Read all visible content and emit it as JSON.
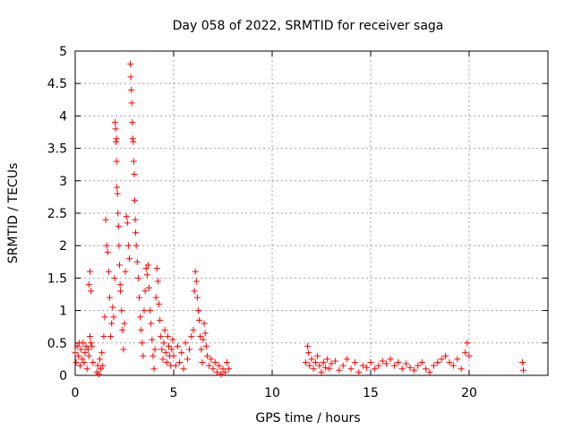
{
  "chart_data": {
    "type": "scatter",
    "title": "Day 058 of 2022, SRMTID for receiver saga",
    "xlabel": "GPS time / hours",
    "ylabel": "SRMTID / TECUs",
    "xlim": [
      0,
      24
    ],
    "ylim": [
      0,
      5
    ],
    "xticks": [
      0,
      5,
      10,
      15,
      20
    ],
    "xtick_labels": [
      "0",
      "5",
      "10",
      "15",
      "20"
    ],
    "yticks": [
      0,
      0.5,
      1,
      1.5,
      2,
      2.5,
      3,
      3.5,
      4,
      4.5,
      5
    ],
    "ytick_labels": [
      "0",
      "0.5",
      "1",
      "1.5",
      "2",
      "2.5",
      "3",
      "3.5",
      "4",
      "4.5",
      "5"
    ],
    "grid": true,
    "marker": "+",
    "color": "#ff0000",
    "series": [
      {
        "name": "SRMTID",
        "points": [
          [
            0.0,
            0.35
          ],
          [
            0.05,
            0.2
          ],
          [
            0.1,
            0.45
          ],
          [
            0.15,
            0.3
          ],
          [
            0.2,
            0.5
          ],
          [
            0.25,
            0.15
          ],
          [
            0.3,
            0.4
          ],
          [
            0.35,
            0.25
          ],
          [
            0.4,
            0.5
          ],
          [
            0.45,
            0.2
          ],
          [
            0.5,
            0.35
          ],
          [
            0.55,
            0.45
          ],
          [
            0.6,
            0.1
          ],
          [
            0.65,
            0.4
          ],
          [
            0.7,
            0.3
          ],
          [
            0.75,
            0.6
          ],
          [
            0.8,
            0.5
          ],
          [
            0.75,
            1.6
          ],
          [
            0.7,
            1.4
          ],
          [
            0.8,
            1.3
          ],
          [
            0.85,
            0.45
          ],
          [
            0.9,
            0.2
          ],
          [
            1.1,
            0.05
          ],
          [
            1.15,
            0.15
          ],
          [
            1.2,
            0.02
          ],
          [
            1.25,
            0.25
          ],
          [
            1.3,
            0.1
          ],
          [
            1.35,
            0.35
          ],
          [
            1.4,
            0.15
          ],
          [
            1.45,
            0.6
          ],
          [
            1.5,
            0.9
          ],
          [
            1.55,
            2.4
          ],
          [
            1.6,
            2.0
          ],
          [
            1.65,
            1.9
          ],
          [
            1.7,
            1.6
          ],
          [
            1.75,
            1.2
          ],
          [
            1.8,
            0.6
          ],
          [
            1.85,
            0.8
          ],
          [
            1.9,
            1.05
          ],
          [
            1.95,
            0.9
          ],
          [
            2.0,
            1.5
          ],
          [
            2.02,
            3.9
          ],
          [
            2.05,
            3.8
          ],
          [
            2.07,
            3.6
          ],
          [
            2.1,
            3.65
          ],
          [
            2.1,
            3.3
          ],
          [
            2.12,
            2.9
          ],
          [
            2.15,
            2.8
          ],
          [
            2.17,
            2.5
          ],
          [
            2.2,
            2.3
          ],
          [
            2.22,
            2.0
          ],
          [
            2.25,
            1.7
          ],
          [
            2.28,
            1.4
          ],
          [
            2.3,
            1.3
          ],
          [
            2.35,
            1.0
          ],
          [
            2.4,
            0.7
          ],
          [
            2.45,
            0.4
          ],
          [
            2.5,
            0.8
          ],
          [
            2.55,
            1.6
          ],
          [
            2.6,
            2.45
          ],
          [
            2.65,
            2.35
          ],
          [
            2.7,
            2.0
          ],
          [
            2.75,
            1.8
          ],
          [
            2.8,
            4.8
          ],
          [
            2.82,
            4.6
          ],
          [
            2.85,
            4.4
          ],
          [
            2.87,
            4.2
          ],
          [
            2.9,
            3.9
          ],
          [
            2.92,
            3.65
          ],
          [
            2.95,
            3.6
          ],
          [
            2.97,
            3.3
          ],
          [
            3.0,
            3.1
          ],
          [
            3.02,
            2.7
          ],
          [
            3.05,
            2.4
          ],
          [
            3.07,
            2.2
          ],
          [
            3.1,
            2.0
          ],
          [
            3.15,
            1.75
          ],
          [
            3.2,
            1.5
          ],
          [
            3.25,
            1.2
          ],
          [
            3.3,
            0.9
          ],
          [
            3.35,
            0.7
          ],
          [
            3.4,
            0.5
          ],
          [
            3.45,
            0.3
          ],
          [
            3.5,
            1.0
          ],
          [
            3.55,
            1.3
          ],
          [
            3.6,
            1.65
          ],
          [
            3.65,
            1.55
          ],
          [
            3.7,
            1.7
          ],
          [
            3.75,
            1.35
          ],
          [
            3.8,
            1.0
          ],
          [
            3.85,
            0.8
          ],
          [
            3.9,
            0.55
          ],
          [
            3.95,
            0.3
          ],
          [
            4.0,
            0.1
          ],
          [
            4.05,
            0.4
          ],
          [
            4.1,
            1.2
          ],
          [
            4.15,
            1.65
          ],
          [
            4.2,
            1.45
          ],
          [
            4.25,
            1.1
          ],
          [
            4.3,
            0.85
          ],
          [
            4.35,
            0.6
          ],
          [
            4.4,
            0.4
          ],
          [
            4.45,
            0.25
          ],
          [
            4.5,
            0.5
          ],
          [
            4.55,
            0.7
          ],
          [
            4.6,
            0.35
          ],
          [
            4.65,
            0.2
          ],
          [
            4.7,
            0.6
          ],
          [
            4.75,
            0.45
          ],
          [
            4.8,
            0.3
          ],
          [
            4.85,
            0.15
          ],
          [
            4.9,
            0.4
          ],
          [
            4.95,
            0.55
          ],
          [
            5.0,
            0.3
          ],
          [
            5.1,
            0.15
          ],
          [
            5.2,
            0.45
          ],
          [
            5.3,
            0.2
          ],
          [
            5.4,
            0.35
          ],
          [
            5.5,
            0.1
          ],
          [
            5.6,
            0.5
          ],
          [
            5.7,
            0.25
          ],
          [
            5.8,
            0.4
          ],
          [
            5.9,
            0.6
          ],
          [
            6.0,
            0.7
          ],
          [
            6.05,
            1.3
          ],
          [
            6.1,
            1.6
          ],
          [
            6.15,
            1.45
          ],
          [
            6.2,
            1.2
          ],
          [
            6.25,
            1.0
          ],
          [
            6.3,
            0.85
          ],
          [
            6.35,
            0.6
          ],
          [
            6.4,
            0.4
          ],
          [
            6.45,
            0.2
          ],
          [
            6.5,
            0.55
          ],
          [
            6.55,
            0.8
          ],
          [
            6.6,
            0.65
          ],
          [
            6.65,
            0.45
          ],
          [
            6.7,
            0.3
          ],
          [
            6.8,
            0.15
          ],
          [
            6.9,
            0.25
          ],
          [
            7.0,
            0.1
          ],
          [
            7.1,
            0.2
          ],
          [
            7.2,
            0.05
          ],
          [
            7.3,
            0.15
          ],
          [
            7.4,
            0.02
          ],
          [
            7.5,
            0.1
          ],
          [
            7.6,
            0.05
          ],
          [
            7.7,
            0.2
          ],
          [
            7.8,
            0.1
          ],
          [
            11.7,
            0.2
          ],
          [
            11.8,
            0.45
          ],
          [
            11.85,
            0.35
          ],
          [
            11.9,
            0.15
          ],
          [
            12.0,
            0.25
          ],
          [
            12.1,
            0.1
          ],
          [
            12.2,
            0.2
          ],
          [
            12.3,
            0.3
          ],
          [
            12.4,
            0.15
          ],
          [
            12.5,
            0.05
          ],
          [
            12.6,
            0.2
          ],
          [
            12.7,
            0.12
          ],
          [
            12.8,
            0.25
          ],
          [
            12.9,
            0.1
          ],
          [
            13.0,
            0.18
          ],
          [
            13.2,
            0.22
          ],
          [
            13.4,
            0.08
          ],
          [
            13.6,
            0.15
          ],
          [
            13.8,
            0.25
          ],
          [
            14.0,
            0.1
          ],
          [
            14.2,
            0.2
          ],
          [
            14.4,
            0.05
          ],
          [
            14.6,
            0.15
          ],
          [
            14.8,
            0.12
          ],
          [
            15.0,
            0.2
          ],
          [
            15.2,
            0.1
          ],
          [
            15.4,
            0.15
          ],
          [
            15.6,
            0.22
          ],
          [
            15.8,
            0.18
          ],
          [
            16.0,
            0.25
          ],
          [
            16.2,
            0.15
          ],
          [
            16.4,
            0.2
          ],
          [
            16.6,
            0.1
          ],
          [
            16.8,
            0.18
          ],
          [
            17.0,
            0.12
          ],
          [
            17.2,
            0.08
          ],
          [
            17.4,
            0.15
          ],
          [
            17.6,
            0.2
          ],
          [
            17.8,
            0.1
          ],
          [
            18.0,
            0.05
          ],
          [
            18.2,
            0.15
          ],
          [
            18.4,
            0.2
          ],
          [
            18.6,
            0.25
          ],
          [
            18.8,
            0.3
          ],
          [
            19.0,
            0.2
          ],
          [
            19.2,
            0.15
          ],
          [
            19.4,
            0.25
          ],
          [
            19.6,
            0.1
          ],
          [
            19.8,
            0.35
          ],
          [
            19.9,
            0.5
          ],
          [
            20.0,
            0.3
          ],
          [
            22.7,
            0.2
          ],
          [
            22.75,
            0.08
          ]
        ]
      }
    ]
  }
}
